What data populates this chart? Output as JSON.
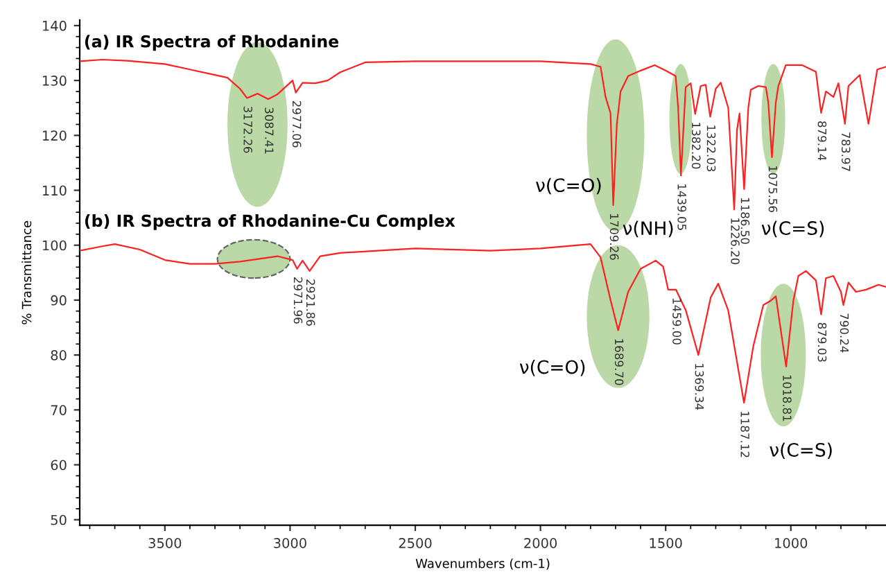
{
  "chart_data": {
    "type": "line",
    "xlabel": "Wavenumbers (cm-1)",
    "ylabel": "% Transmittance",
    "xlim": [
      3840,
      620
    ],
    "ylim": [
      49,
      141
    ],
    "xticks": [
      3500,
      3000,
      2500,
      2000,
      1500,
      1000
    ],
    "yticks": [
      50,
      60,
      70,
      80,
      90,
      100,
      110,
      120,
      130,
      140
    ],
    "grid": false,
    "legend": false,
    "marker": "none",
    "line_style": "solid",
    "series": [
      {
        "color": "#ff2020",
        "x": [
          3840,
          3750,
          3650,
          3500,
          3400,
          3300,
          3250,
          3200,
          3172.26,
          3130,
          3087.41,
          3050,
          2990,
          2977.06,
          2950,
          2900,
          2850,
          2800,
          2700,
          2500,
          2200,
          2000,
          1800,
          1760,
          1740,
          1720,
          1709.26,
          1695,
          1680,
          1650,
          1600,
          1544,
          1500,
          1460,
          1450,
          1439.05,
          1420,
          1400,
          1382.2,
          1360,
          1340,
          1322.03,
          1300,
          1280,
          1250,
          1226.2,
          1215,
          1205,
          1186.5,
          1170,
          1160,
          1130,
          1100,
          1090,
          1075.56,
          1060,
          1050,
          1020,
          955,
          900,
          879.14,
          860,
          830,
          810,
          783.97,
          770,
          725,
          690,
          655,
          620
        ],
        "values": [
          133.5,
          133.8,
          133.6,
          133,
          132,
          131,
          130.5,
          128.5,
          126.8,
          127.6,
          126.6,
          127.5,
          130,
          127.8,
          129.6,
          129.5,
          130,
          131.5,
          133.3,
          133.5,
          133.5,
          133.5,
          133,
          132.5,
          127,
          124,
          107.3,
          122,
          128,
          130.8,
          131.8,
          132.8,
          131.8,
          130.8,
          125,
          112.7,
          128.8,
          129.5,
          123.9,
          129,
          129.2,
          123.4,
          128.5,
          129.6,
          125,
          106.5,
          121,
          124,
          110.2,
          125,
          128.3,
          129,
          128.8,
          126,
          116,
          126,
          129,
          132.8,
          132.8,
          131.6,
          124.1,
          128,
          127,
          129.5,
          122.1,
          129,
          131,
          122.1,
          132,
          132.5
        ]
      },
      {
        "color": "#ff2020",
        "x": [
          3840,
          3750,
          3700,
          3600,
          3500,
          3400,
          3300,
          3200,
          3050,
          2990,
          2971.96,
          2950,
          2921.86,
          2880,
          2800,
          2500,
          2200,
          2000,
          1800,
          1760,
          1720,
          1689.7,
          1650,
          1600,
          1540,
          1510,
          1490,
          1459,
          1420,
          1369.34,
          1320,
          1290,
          1250,
          1187.12,
          1150,
          1110,
          1080,
          1060,
          1018.81,
          990,
          970,
          940,
          900,
          879.03,
          860,
          830,
          800,
          790.24,
          770,
          740,
          700,
          650,
          620
        ],
        "values": [
          99,
          99.8,
          100.2,
          99.2,
          97.3,
          96.6,
          96.6,
          97,
          98,
          97.3,
          95.7,
          97.2,
          95.3,
          98,
          98.6,
          99.4,
          99,
          99.4,
          100.2,
          97.8,
          90,
          84.5,
          91.5,
          95.7,
          97.2,
          96.1,
          91.9,
          91.9,
          88.2,
          80,
          90.5,
          93,
          88.1,
          71.3,
          81.6,
          89.1,
          89.9,
          90.7,
          77.9,
          89.9,
          94.4,
          95.3,
          93.6,
          87.4,
          94,
          94.4,
          91.5,
          89.1,
          93.2,
          91.5,
          91.9,
          92.8,
          92.4
        ]
      }
    ],
    "annotations": [
      "(a) IR Spectra of Rhodanine",
      "(b) IR Spectra of Rhodanine-Cu Complex",
      {
        "text": "3172.26",
        "x": 3172.26,
        "y": 126.8
      },
      {
        "text": "3087.41",
        "x": 3087.41,
        "y": 126.6
      },
      {
        "text": "2977.06",
        "x": 2977.06,
        "y": 127.8
      },
      {
        "text": "1709.26",
        "x": 1709.26,
        "y": 107.3
      },
      {
        "text": "1439.05",
        "x": 1439.05,
        "y": 112.7
      },
      {
        "text": "1382.20",
        "x": 1382.2,
        "y": 123.9
      },
      {
        "text": "1322.03",
        "x": 1322.03,
        "y": 123.4
      },
      {
        "text": "1226.20",
        "x": 1226.2,
        "y": 106.5
      },
      {
        "text": "1186.50",
        "x": 1186.5,
        "y": 110.2
      },
      {
        "text": "1075.56",
        "x": 1075.56,
        "y": 116
      },
      {
        "text": "879.14",
        "x": 879.14,
        "y": 124.1
      },
      {
        "text": "783.97",
        "x": 783.97,
        "y": 122.1
      },
      {
        "text": "2971.96",
        "x": 2971.96,
        "y": 95.7
      },
      {
        "text": "2921.86",
        "x": 2921.86,
        "y": 95.3
      },
      {
        "text": "1689.70",
        "x": 1689.7,
        "y": 84.5
      },
      {
        "text": "1459.00",
        "x": 1459.0,
        "y": 91.9
      },
      {
        "text": "1369.34",
        "x": 1369.34,
        "y": 80
      },
      {
        "text": "1187.12",
        "x": 1187.12,
        "y": 71.3
      },
      {
        "text": "1018.81",
        "x": 1018.81,
        "y": 77.9
      },
      {
        "text": "879.03",
        "x": 879.03,
        "y": 87.4
      },
      {
        "text": "790.24",
        "x": 790.24,
        "y": 89.1
      },
      "ν(C=O)",
      "ν(NH)",
      "ν(C=S)",
      "ν(C=O)",
      "ν(C=S)"
    ]
  }
}
